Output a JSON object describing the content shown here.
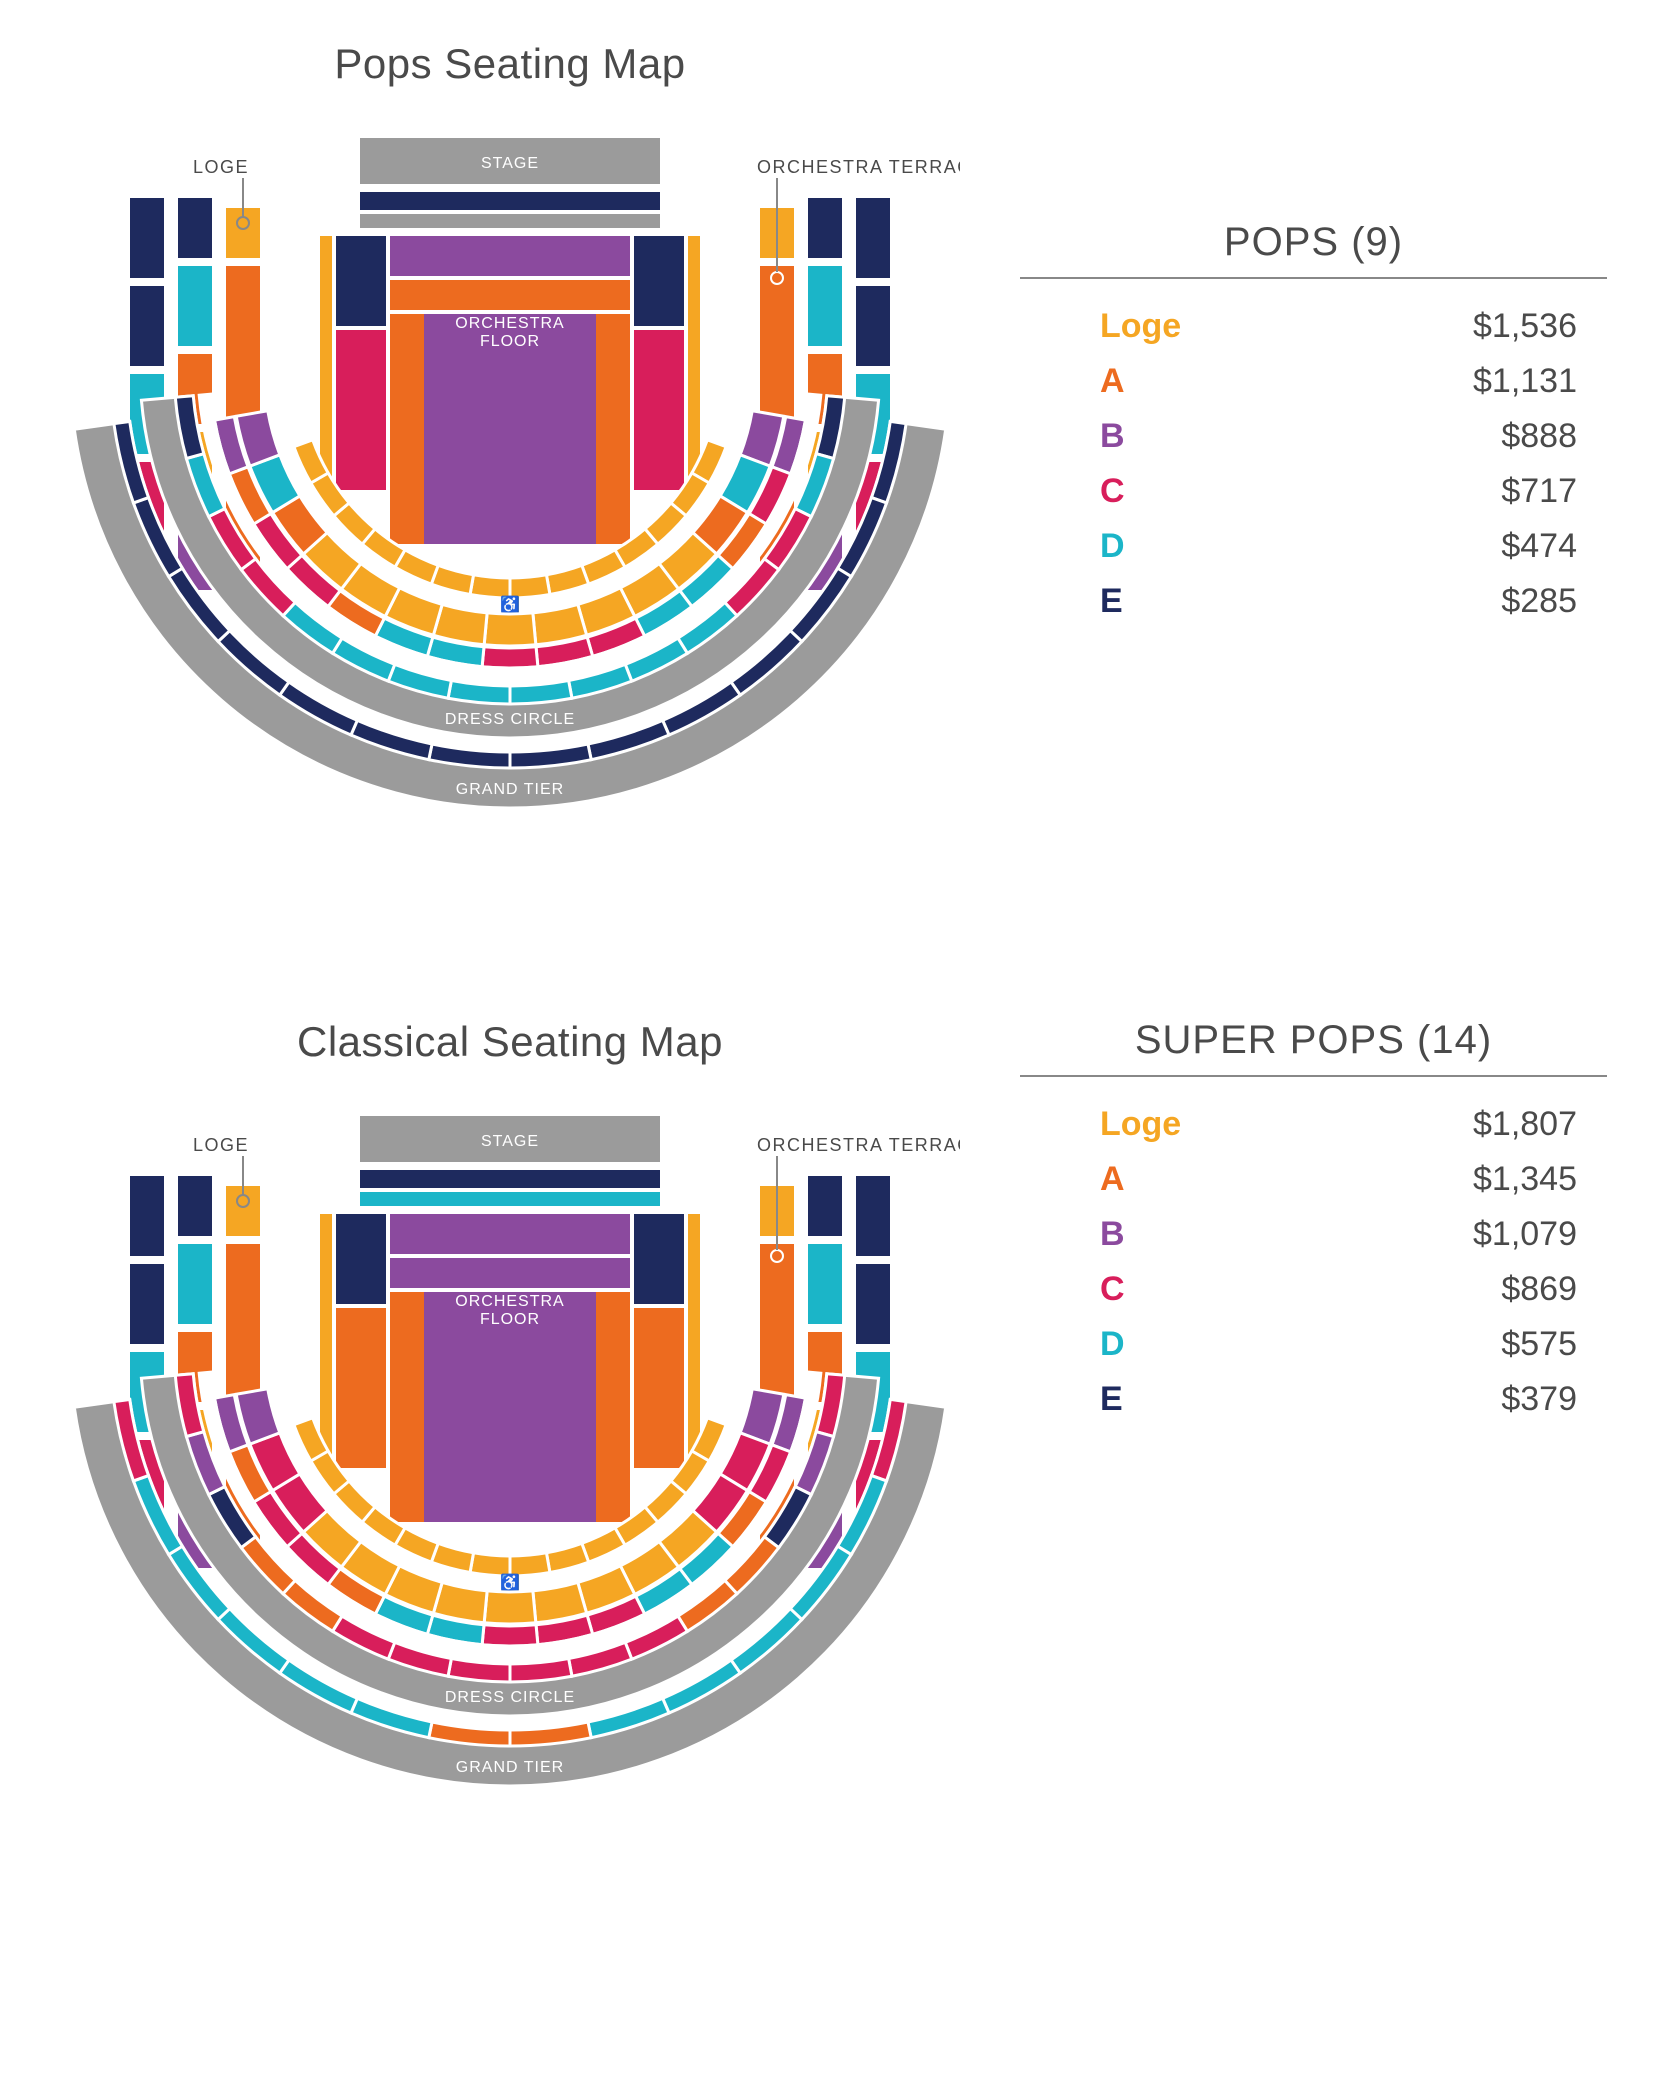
{
  "colors": {
    "loge": "#f5a623",
    "A": "#ed6b1f",
    "B": "#8b4a9e",
    "C": "#d81e5b",
    "D": "#1bb5c8",
    "E": "#1e2a5e",
    "gray": "#9b9b9b",
    "white": "#ffffff",
    "text": "#4a4a4a"
  },
  "maps": [
    {
      "id": "pops",
      "title": "Pops Seating Map",
      "labels": {
        "stage": "STAGE",
        "loge": "LOGE",
        "orchestra_terrace": "ORCHESTRA TERRACE",
        "orchestra_floor": "ORCHESTRA FLOOR",
        "dress_circle": "DRESS CIRCLE",
        "grand_tier": "GRAND TIER"
      }
    },
    {
      "id": "classical",
      "title": "Classical Seating Map",
      "labels": {
        "stage": "STAGE",
        "loge": "LOGE",
        "orchestra_terrace": "ORCHESTRA TERRACE",
        "orchestra_floor": "ORCHESTRA FLOOR",
        "dress_circle": "DRESS CIRCLE",
        "grand_tier": "GRAND TIER"
      }
    }
  ],
  "price_tables": [
    {
      "title": "POPS",
      "count": "(9)",
      "tiers": [
        {
          "label": "Loge",
          "price": "$1,536",
          "color_key": "loge"
        },
        {
          "label": "A",
          "price": "$1,131",
          "color_key": "A"
        },
        {
          "label": "B",
          "price": "$888",
          "color_key": "B"
        },
        {
          "label": "C",
          "price": "$717",
          "color_key": "C"
        },
        {
          "label": "D",
          "price": "$474",
          "color_key": "D"
        },
        {
          "label": "E",
          "price": "$285",
          "color_key": "E"
        }
      ]
    },
    {
      "title": "SUPER POPS",
      "count": "(14)",
      "tiers": [
        {
          "label": "Loge",
          "price": "$1,807",
          "color_key": "loge"
        },
        {
          "label": "A",
          "price": "$1,345",
          "color_key": "A"
        },
        {
          "label": "B",
          "price": "$1,079",
          "color_key": "B"
        },
        {
          "label": "C",
          "price": "$869",
          "color_key": "C"
        },
        {
          "label": "D",
          "price": "$575",
          "color_key": "D"
        },
        {
          "label": "E",
          "price": "$379",
          "color_key": "E"
        }
      ]
    }
  ],
  "segmentation": {
    "white_gap": "#ffffff",
    "seg_stroke_width": 4
  }
}
